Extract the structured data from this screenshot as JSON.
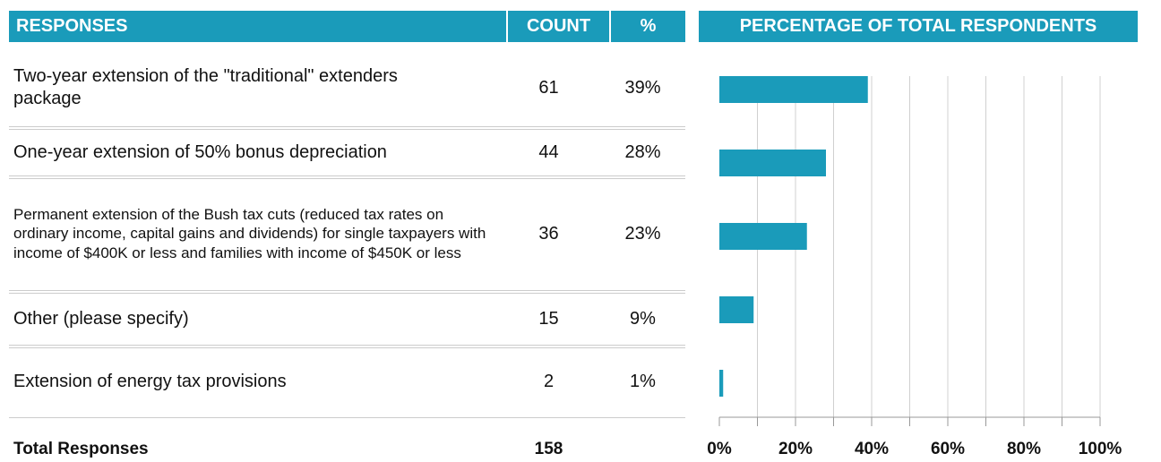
{
  "table": {
    "headers": [
      "RESPONSES",
      "COUNT",
      "%"
    ],
    "counts": [
      61,
      44,
      36,
      15,
      2
    ],
    "total_label": "Total Responses",
    "total_count": 158
  },
  "chart_data": {
    "type": "bar",
    "orientation": "horizontal",
    "title": "PERCENTAGE OF TOTAL RESPONDENTS",
    "categories": [
      "Two-year extension of the \"traditional\" extenders package",
      "One-year extension of 50% bonus depreciation",
      "Permanent extension of the Bush tax cuts (reduced tax rates on ordinary income, capital gains and dividends) for single taxpayers with income of $400K or less and families with income of $450K or less",
      "Other (please specify)",
      "Extension of energy tax provisions"
    ],
    "values": [
      39,
      28,
      23,
      9,
      1
    ],
    "value_labels": [
      "39%",
      "28%",
      "23%",
      "9%",
      "1%"
    ],
    "color": "#1a9bba",
    "xlim": [
      0,
      100
    ],
    "xticks": [
      {
        "value": 0,
        "label": "0%"
      },
      {
        "value": 20,
        "label": "20%"
      },
      {
        "value": 40,
        "label": "40%"
      },
      {
        "value": 60,
        "label": "60%"
      },
      {
        "value": 80,
        "label": "80%"
      },
      {
        "value": 100,
        "label": "100%"
      }
    ],
    "xminor": [
      10,
      30,
      50,
      70,
      90
    ],
    "grid": true
  }
}
